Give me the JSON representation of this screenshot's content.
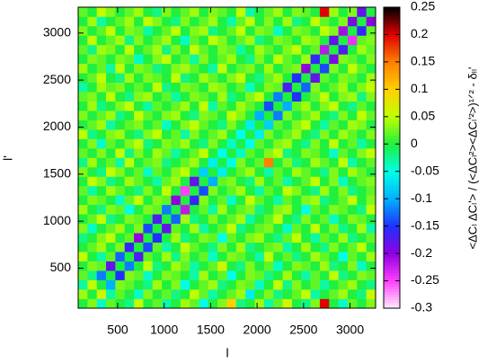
{
  "chart_data": {
    "type": "heatmap",
    "x_label": "l",
    "y_label": "l'",
    "colorbar_label": "<ΔCₗ ΔCₗ'> / (<ΔCₗ²><ΔCₗ'²>)¹ᐟ² - δₗₗ'",
    "x": [
      125,
      225,
      325,
      425,
      525,
      625,
      725,
      825,
      925,
      1025,
      1125,
      1225,
      1325,
      1425,
      1525,
      1625,
      1725,
      1825,
      1925,
      2025,
      2125,
      2225,
      2325,
      2425,
      2525,
      2625,
      2725,
      2825,
      2925,
      3025,
      3125,
      3225
    ],
    "y": [
      125,
      225,
      325,
      425,
      525,
      625,
      725,
      825,
      925,
      1025,
      1125,
      1225,
      1325,
      1425,
      1525,
      1625,
      1725,
      1825,
      1925,
      2025,
      2125,
      2225,
      2325,
      2425,
      2525,
      2625,
      2725,
      2825,
      2925,
      3025,
      3125,
      3225
    ],
    "xlim": [
      75,
      3275
    ],
    "ylim": [
      75,
      3275
    ],
    "xticks": [
      500,
      1000,
      1500,
      2000,
      2500,
      3000
    ],
    "yticks": [
      500,
      1000,
      1500,
      2000,
      2500,
      3000
    ],
    "clim": [
      -0.3,
      0.25
    ],
    "cticks": [
      0.25,
      0.2,
      0.15,
      0.1,
      0.05,
      0,
      -0.05,
      -0.1,
      -0.15,
      -0.2,
      -0.25,
      -0.3
    ],
    "colorscale": [
      [
        -0.3,
        "#fdeefa"
      ],
      [
        -0.25,
        "#ff40ff"
      ],
      [
        -0.2,
        "#9000e0"
      ],
      [
        -0.15,
        "#2030ff"
      ],
      [
        -0.1,
        "#00b0ff"
      ],
      [
        -0.05,
        "#00ffe8"
      ],
      [
        0,
        "#20f040"
      ],
      [
        0.05,
        "#c0ff00"
      ],
      [
        0.1,
        "#ffd000"
      ],
      [
        0.15,
        "#ff8000"
      ],
      [
        0.2,
        "#e00000"
      ],
      [
        0.25,
        "#000000"
      ]
    ],
    "z": [
      [
        0,
        0.03,
        -0.04,
        0.02,
        0,
        -0.02,
        0.05,
        0,
        0.02,
        -0.03,
        0,
        0.04,
        0.02,
        -0.05,
        0,
        0.03,
        0.1,
        -0.02,
        0,
        0.04,
        -0.03,
        0.02,
        0.06,
        0,
        -0.02,
        0.03,
        0.2,
        0,
        -0.04,
        0.02,
        0,
        0.03
      ],
      [
        0.04,
        0,
        0.06,
        -0.03,
        0.02,
        0,
        -0.04,
        0.03,
        0,
        0.02,
        -0.02,
        0,
        0.05,
        0.02,
        -0.03,
        0,
        0.02,
        0.04,
        -0.06,
        0,
        0.03,
        -0.02,
        0,
        0.02,
        0.05,
        -0.03,
        0,
        0.02,
        0.04,
        0,
        -0.02,
        0.06
      ],
      [
        -0.03,
        0.05,
        0,
        -0.1,
        0.03,
        0.02,
        0,
        -0.02,
        0.04,
        0,
        0.03,
        -0.05,
        0,
        0.02,
        0.04,
        -0.02,
        0,
        0.03,
        0.02,
        -0.04,
        0,
        0.05,
        -0.02,
        0.03,
        0,
        0.02,
        -0.03,
        0,
        0.02,
        0.04,
        0,
        -0.02
      ],
      [
        0.02,
        -0.02,
        -0.12,
        0,
        -0.15,
        0.03,
        0.02,
        -0.04,
        0,
        0.03,
        0.02,
        0,
        -0.03,
        0.04,
        0,
        0.02,
        -0.05,
        0,
        0.03,
        0.02,
        -0.02,
        0,
        0.04,
        0,
        -0.03,
        0.02,
        0,
        0.05,
        -0.02,
        0,
        0.03,
        0.02
      ],
      [
        0,
        0.03,
        0.02,
        -0.18,
        0,
        -0.12,
        0,
        0.05,
        -0.02,
        0,
        0.04,
        0.02,
        -0.03,
        0,
        0.02,
        0.06,
        0,
        -0.02,
        0.03,
        0,
        0.02,
        -0.04,
        0,
        0.03,
        0.02,
        0,
        0.04,
        -0.02,
        0,
        0.03,
        -0.04,
        0
      ],
      [
        0.05,
        0,
        -0.03,
        0.02,
        -0.13,
        0,
        -0.17,
        0.02,
        0,
        0.04,
        -0.02,
        0.03,
        0,
        0.02,
        -0.04,
        0,
        0.03,
        0.02,
        0,
        -0.03,
        0.05,
        0,
        0.02,
        -0.02,
        0,
        0.04,
        0.02,
        0,
        -0.05,
        0.02,
        0,
        0.04
      ],
      [
        0,
        0.02,
        0.04,
        0,
        0.03,
        -0.16,
        0,
        -0.14,
        0.02,
        -0.03,
        0,
        0.05,
        0.02,
        0,
        -0.02,
        0.03,
        0,
        0.04,
        -0.02,
        0,
        0.02,
        0.03,
        -0.03,
        0,
        0.04,
        0,
        -0.02,
        0.03,
        0,
        0.02,
        0.05,
        0
      ],
      [
        -0.02,
        0,
        0.03,
        0.05,
        0,
        0.02,
        -0.2,
        0,
        -0.15,
        0,
        0.04,
        -0.02,
        0,
        0.03,
        0.02,
        -0.05,
        0.02,
        0,
        0.03,
        0.04,
        0,
        -0.02,
        0.02,
        0.05,
        0,
        -0.03,
        0.02,
        0,
        0.04,
        -0.02,
        0,
        0.02
      ],
      [
        0.03,
        -0.04,
        0,
        0.02,
        0.04,
        0,
        0.03,
        -0.14,
        0,
        -0.18,
        0.02,
        0,
        0.04,
        -0.03,
        0,
        0.02,
        0.05,
        -0.02,
        0,
        0.02,
        0.03,
        0,
        -0.04,
        0.02,
        0,
        0.05,
        0,
        0.03,
        -0.02,
        0,
        0.04,
        -0.03
      ],
      [
        0,
        0.02,
        0.05,
        -0.02,
        0,
        0.03,
        0.02,
        0,
        -0.17,
        0,
        -0.13,
        0.04,
        -0.02,
        0,
        0.03,
        0,
        0.02,
        0.04,
        -0.03,
        0,
        0.02,
        0.05,
        0,
        -0.02,
        0.03,
        0,
        0.02,
        -0.04,
        0,
        0.03,
        0.02,
        0
      ],
      [
        0.04,
        0,
        -0.02,
        0.03,
        0.02,
        -0.05,
        0,
        0.03,
        0.02,
        -0.12,
        0,
        -0.22,
        0,
        0.02,
        -0.03,
        0.04,
        0,
        0.02,
        0.03,
        -0.02,
        0,
        0.03,
        0.04,
        0,
        -0.05,
        0.02,
        0,
        0.03,
        0.02,
        0,
        -0.02,
        0.05
      ],
      [
        0,
        0.03,
        0.02,
        0,
        -0.04,
        0.02,
        0.05,
        0,
        0.03,
        0.02,
        -0.2,
        0,
        -0.16,
        0.03,
        0,
        0.02,
        -0.04,
        0,
        0.05,
        0.02,
        0,
        -0.03,
        0.02,
        0,
        0.03,
        0.04,
        -0.02,
        0,
        0.02,
        0.05,
        0,
        0.03
      ],
      [
        0.02,
        -0.03,
        0,
        0.04,
        0.02,
        0,
        -0.02,
        0.03,
        0,
        0.05,
        0,
        -0.25,
        0,
        -0.14,
        0.03,
        0,
        0.02,
        0.04,
        0,
        -0.03,
        0.02,
        0,
        0.05,
        0.03,
        0,
        -0.02,
        0.04,
        0,
        0.03,
        -0.02,
        0,
        0.02
      ],
      [
        0,
        0.05,
        0.03,
        -0.02,
        0,
        0.04,
        0.02,
        0,
        -0.03,
        0.02,
        0.04,
        0,
        -0.18,
        0,
        -0.1,
        0.02,
        0.03,
        0,
        -0.02,
        0.04,
        0,
        0.02,
        -0.03,
        0,
        0.02,
        0.05,
        0,
        0.03,
        -0.04,
        0,
        0.02,
        0.03
      ],
      [
        0.03,
        0,
        -0.02,
        0.05,
        0.03,
        0,
        0.02,
        -0.04,
        0.02,
        0,
        0.03,
        0.05,
        0,
        -0.08,
        0,
        -0.06,
        0,
        0.02,
        0.04,
        0,
        -0.03,
        0.02,
        0,
        0.04,
        0.02,
        0,
        -0.02,
        0.03,
        0,
        0.04,
        0.02,
        0
      ],
      [
        -0.02,
        0.04,
        0,
        0.02,
        -0.03,
        0.05,
        0,
        0.02,
        0.03,
        -0.02,
        0,
        0.02,
        0.04,
        0,
        -0.06,
        0,
        -0.05,
        0.03,
        0,
        0.02,
        0.15,
        0,
        0.03,
        -0.02,
        0,
        0.04,
        0.02,
        0,
        0.05,
        -0.03,
        0,
        0.02
      ],
      [
        0.02,
        0,
        0.03,
        0,
        0.05,
        -0.02,
        0.03,
        0,
        0.04,
        0.02,
        -0.03,
        0,
        0.02,
        0.05,
        0,
        -0.05,
        0,
        -0.04,
        0.02,
        0,
        0.03,
        0.05,
        -0.02,
        0,
        0.03,
        0.02,
        0,
        -0.04,
        0.02,
        0,
        0.03,
        0.05
      ],
      [
        0,
        0.03,
        -0.04,
        0.02,
        0,
        0.03,
        0.05,
        -0.02,
        0,
        0.03,
        0.02,
        0.04,
        0,
        -0.02,
        0.03,
        0,
        -0.04,
        0,
        -0.05,
        0.02,
        0,
        0.03,
        0.04,
        0,
        -0.02,
        0.03,
        0,
        0.05,
        0,
        0.02,
        -0.03,
        0
      ],
      [
        0.05,
        -0.02,
        0,
        0.03,
        0.04,
        0,
        -0.02,
        0.03,
        0.05,
        0,
        0.02,
        -0.03,
        0.03,
        0,
        0.02,
        0.04,
        0,
        -0.05,
        0,
        -0.06,
        0.03,
        0,
        0.02,
        0.04,
        0,
        -0.02,
        0.03,
        0,
        0.04,
        0.02,
        0,
        0.03
      ],
      [
        0,
        0.02,
        0.04,
        -0.03,
        0,
        0.02,
        0.03,
        0,
        0.02,
        -0.04,
        0,
        0.03,
        0.05,
        0.02,
        0,
        -0.02,
        0.03,
        0,
        -0.06,
        0,
        -0.08,
        0.02,
        0,
        0.03,
        0.05,
        0,
        -0.03,
        0.02,
        0,
        0.04,
        0.03,
        0
      ],
      [
        0.03,
        0,
        0.02,
        0.04,
        -0.02,
        0,
        0.05,
        0.02,
        0,
        0.03,
        0.04,
        0,
        -0.02,
        0.03,
        0.02,
        0,
        0.05,
        0.03,
        0,
        -0.1,
        0,
        -0.12,
        0.03,
        0,
        0.02,
        0.04,
        0,
        -0.02,
        0.03,
        0,
        0.05,
        0.02
      ],
      [
        0,
        0.04,
        -0.02,
        0,
        0.03,
        0.05,
        0,
        -0.03,
        0.02,
        0,
        0.02,
        0.04,
        0,
        0.05,
        -0.03,
        0.02,
        0,
        0.04,
        0.02,
        0,
        -0.14,
        0,
        -0.1,
        0.02,
        0.04,
        0,
        0.03,
        0.05,
        0,
        -0.02,
        0.02,
        0
      ],
      [
        0.02,
        0.03,
        0,
        0.05,
        0,
        -0.02,
        0.03,
        0.04,
        0,
        0.02,
        -0.03,
        0,
        0.03,
        0.02,
        0,
        0.04,
        -0.02,
        0,
        0.03,
        0.05,
        0,
        -0.12,
        0,
        -0.15,
        0,
        0.02,
        0.05,
        0,
        0.03,
        0.04,
        -0.02,
        0.03
      ],
      [
        -0.03,
        0,
        0.04,
        0.02,
        0.03,
        0,
        0.02,
        0,
        0.05,
        -0.02,
        0,
        0.03,
        0.02,
        0,
        0.04,
        0.03,
        0,
        0.02,
        -0.04,
        0,
        0.03,
        0.02,
        -0.17,
        0,
        -0.13,
        0.03,
        0,
        0.02,
        0.04,
        0,
        0.03,
        0.05
      ],
      [
        0,
        0.02,
        0.05,
        0,
        -0.02,
        0.04,
        0,
        0.03,
        0.02,
        0,
        0.05,
        -0.02,
        0,
        0.04,
        0.02,
        0,
        0.03,
        0.05,
        0,
        -0.02,
        0.02,
        0.04,
        0,
        -0.15,
        0,
        -0.18,
        0.02,
        0,
        0.03,
        0.02,
        0,
        0.04
      ],
      [
        0.04,
        0,
        0.02,
        -0.03,
        0.05,
        0,
        0.03,
        0.02,
        -0.02,
        0,
        0.03,
        0.04,
        0.02,
        0,
        -0.03,
        0.05,
        0,
        0.02,
        0.03,
        0,
        0.04,
        0,
        0.02,
        0.03,
        -0.2,
        0,
        -0.14,
        0.03,
        0,
        0.05,
        0.02,
        0
      ],
      [
        0,
        0.03,
        0.02,
        0,
        0.03,
        0.02,
        -0.04,
        0,
        0.03,
        0.05,
        0,
        0.02,
        -0.03,
        0.03,
        0,
        0.02,
        0.04,
        0,
        -0.02,
        0.03,
        0,
        0.05,
        0.02,
        0,
        0.04,
        -0.16,
        0,
        -0.19,
        0.03,
        0.02,
        0,
        0.03
      ],
      [
        0.02,
        -0.02,
        0.04,
        0.03,
        0,
        0.05,
        0,
        0.02,
        0.04,
        -0.02,
        0.03,
        0,
        0.05,
        0.02,
        0,
        0.03,
        0.02,
        -0.03,
        0,
        0.04,
        0.02,
        0,
        0.03,
        0.05,
        0,
        0.02,
        -0.22,
        0,
        -0.17,
        0,
        0.04,
        0.02
      ],
      [
        0,
        0.05,
        0,
        0.02,
        0.04,
        -0.02,
        0.03,
        0,
        0.02,
        0.04,
        0,
        -0.04,
        0.02,
        0,
        0.05,
        0.03,
        0,
        0.02,
        0.04,
        -0.02,
        0,
        0.03,
        0.02,
        0,
        0.04,
        0.03,
        0,
        -0.18,
        0,
        -0.24,
        0.02,
        0.03
      ],
      [
        0.03,
        0,
        0.02,
        0.05,
        0,
        0.03,
        0.02,
        -0.03,
        0,
        0.02,
        0.05,
        0,
        0.03,
        0.04,
        -0.02,
        0,
        0.02,
        0.05,
        0,
        0.03,
        0.02,
        -0.04,
        0,
        0.03,
        0.02,
        0,
        0.05,
        0.03,
        -0.21,
        0,
        -0.16,
        0.02
      ],
      [
        0,
        0.04,
        -0.03,
        0,
        0.02,
        0.04,
        0,
        0.05,
        0.03,
        0,
        -0.02,
        0.03,
        0,
        0.02,
        0.04,
        0,
        -0.03,
        0.02,
        0.05,
        0,
        0.03,
        0,
        0.04,
        -0.02,
        0,
        0.05,
        0.02,
        0,
        0.03,
        -0.19,
        0,
        -0.2
      ],
      [
        0.02,
        0,
        0.05,
        0.03,
        0,
        0.02,
        0.04,
        0,
        -0.02,
        0.03,
        0,
        0.02,
        0.04,
        0,
        0.03,
        0.02,
        0,
        0.05,
        -0.03,
        0,
        0.02,
        0.04,
        0,
        0.03,
        0.02,
        0,
        0.2,
        0.04,
        0,
        0.03,
        -0.18,
        0
      ]
    ]
  }
}
